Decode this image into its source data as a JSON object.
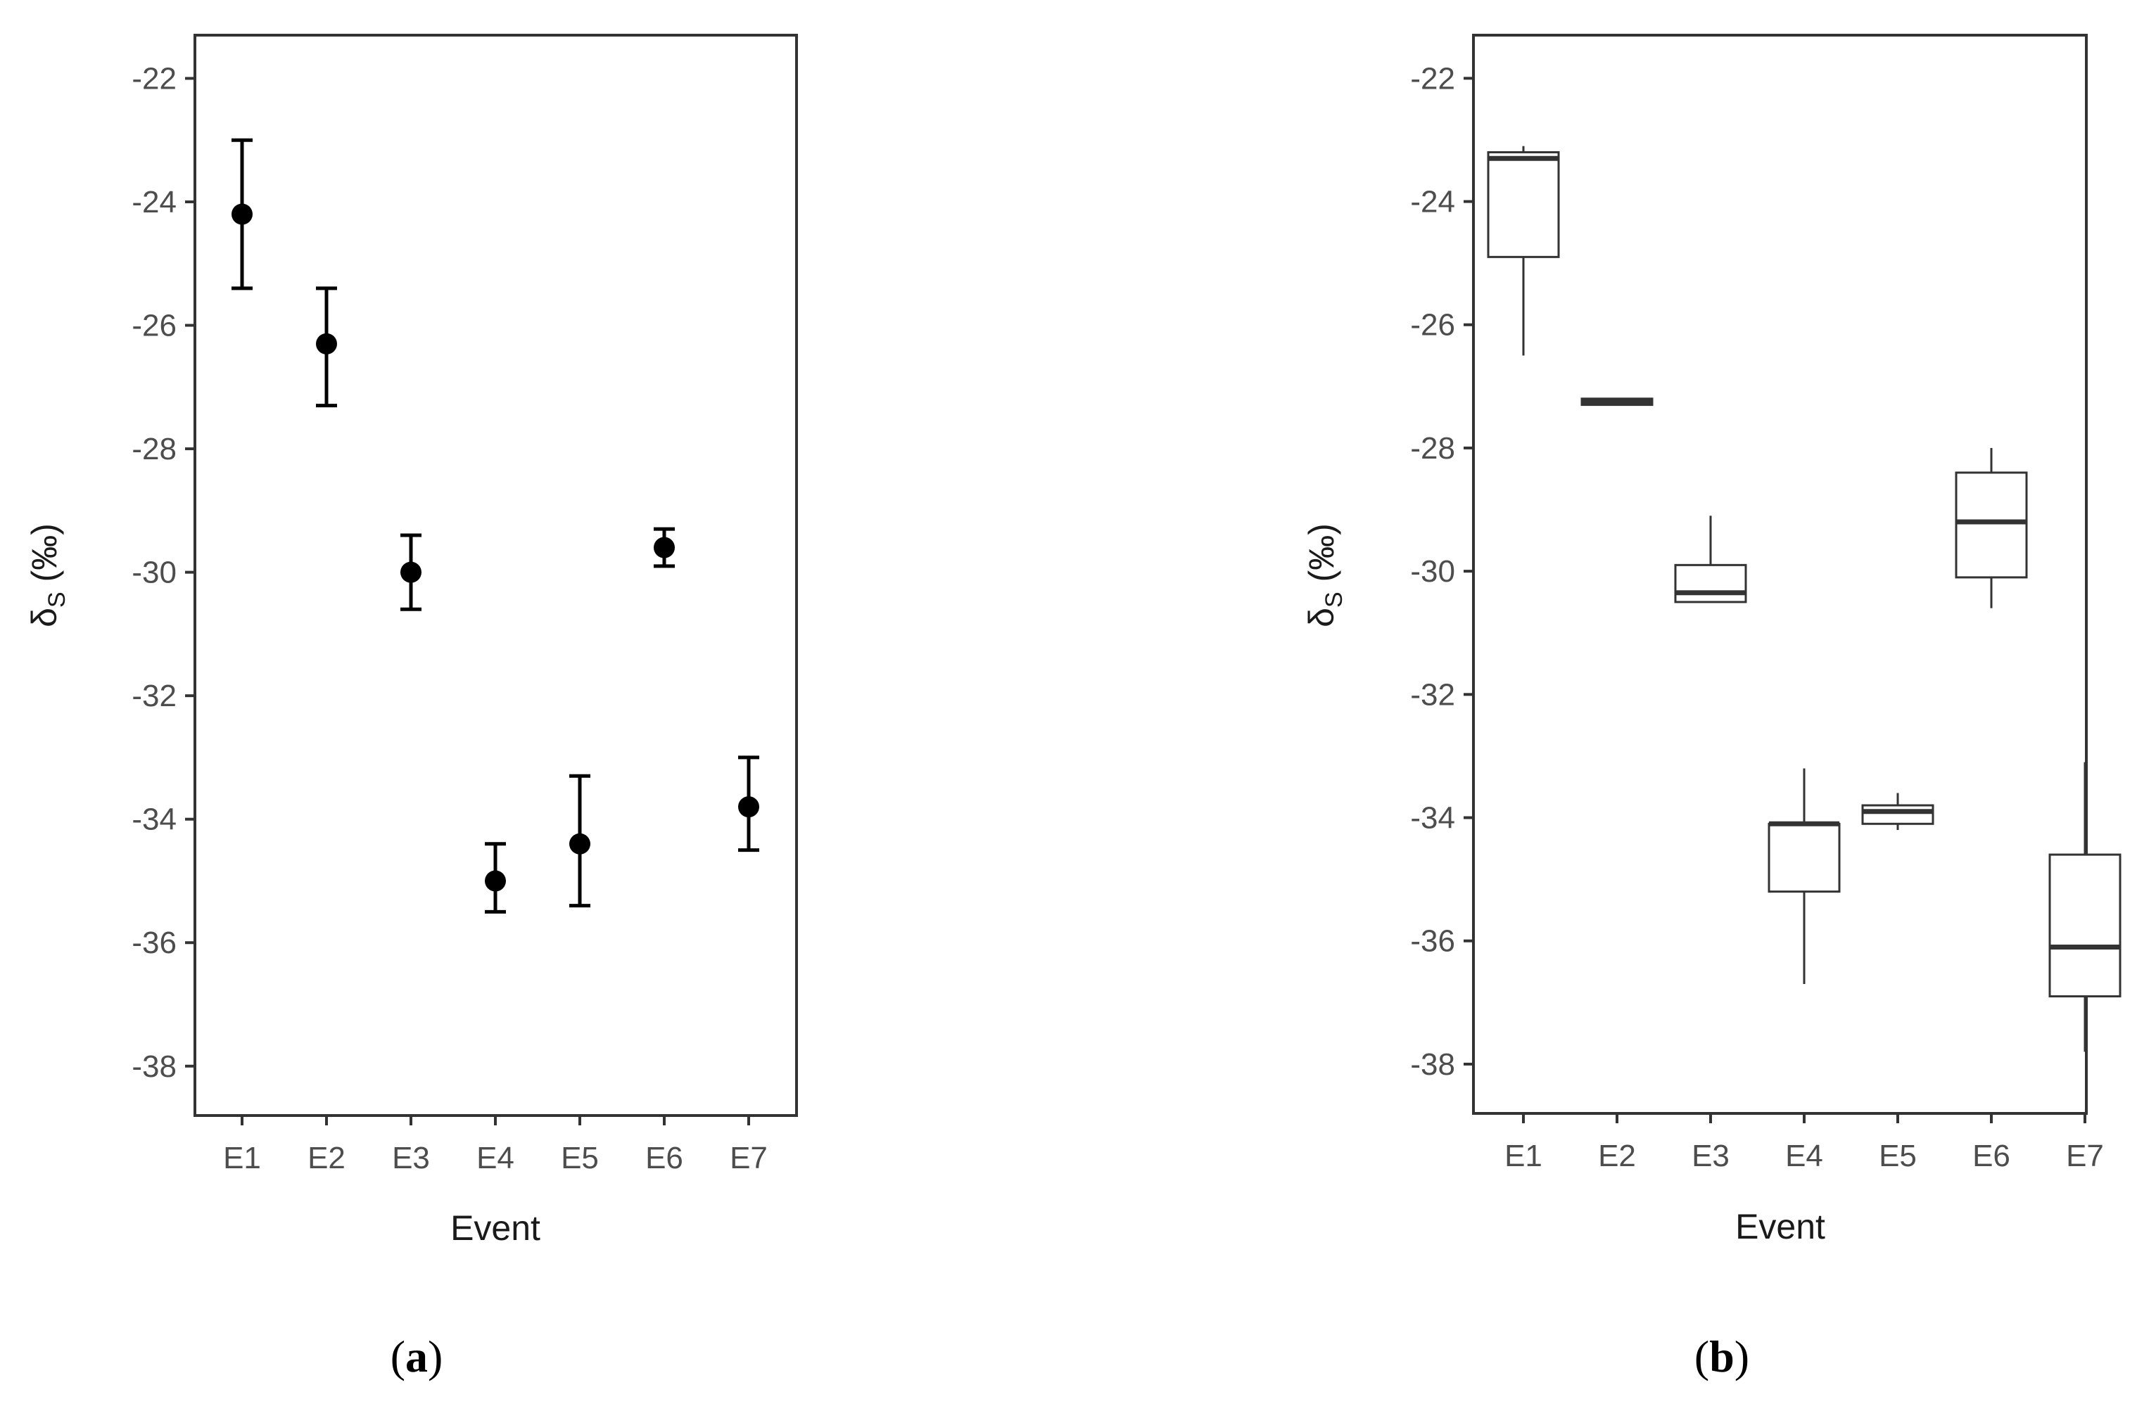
{
  "chart_data": [
    {
      "type": "scatter",
      "panel_label": "a",
      "xlabel": "Event",
      "ylabel_main": "δ",
      "ylabel_sub": "S",
      "ylabel_tail": " (‰)",
      "categories": [
        "E1",
        "E2",
        "E3",
        "E4",
        "E5",
        "E6",
        "E7"
      ],
      "yticks": [
        -22,
        -24,
        -26,
        -28,
        -30,
        -32,
        -34,
        -36,
        -38
      ],
      "ylim": [
        -38.8,
        -21.3
      ],
      "grid": false,
      "points": [
        {
          "x": "E1",
          "y": -24.2,
          "ymin": -25.4,
          "ymax": -23.0
        },
        {
          "x": "E2",
          "y": -26.3,
          "ymin": -27.3,
          "ymax": -25.4
        },
        {
          "x": "E3",
          "y": -30.0,
          "ymin": -30.6,
          "ymax": -29.4
        },
        {
          "x": "E4",
          "y": -35.0,
          "ymin": -35.5,
          "ymax": -34.4
        },
        {
          "x": "E5",
          "y": -34.4,
          "ymin": -35.4,
          "ymax": -33.3
        },
        {
          "x": "E6",
          "y": -29.6,
          "ymin": -29.9,
          "ymax": -29.3
        },
        {
          "x": "E7",
          "y": -33.8,
          "ymin": -34.5,
          "ymax": -33.0
        }
      ]
    },
    {
      "type": "box",
      "panel_label": "b",
      "xlabel": "Event",
      "ylabel_main": "δ",
      "ylabel_sub": "S",
      "ylabel_tail": " (‰)",
      "categories": [
        "E1",
        "E2",
        "E3",
        "E4",
        "E5",
        "E6",
        "E7"
      ],
      "yticks": [
        -22,
        -24,
        -26,
        -28,
        -30,
        -32,
        -34,
        -36,
        -38
      ],
      "ylim": [
        -38.8,
        -21.3
      ],
      "grid": false,
      "boxes": [
        {
          "x": "E1",
          "min": -26.5,
          "q1": -24.9,
          "median": -23.3,
          "q3": -23.2,
          "max": -23.1
        },
        {
          "x": "E2",
          "min": -27.3,
          "q1": -27.3,
          "median": -27.25,
          "q3": -27.2,
          "max": -27.2
        },
        {
          "x": "E3",
          "min": -30.5,
          "q1": -30.5,
          "median": -30.35,
          "q3": -29.9,
          "max": -29.1
        },
        {
          "x": "E4",
          "min": -36.7,
          "q1": -35.2,
          "median": -34.1,
          "q3": -34.1,
          "max": -33.2
        },
        {
          "x": "E5",
          "min": -34.2,
          "q1": -34.1,
          "median": -33.9,
          "q3": -33.8,
          "max": -33.6
        },
        {
          "x": "E6",
          "min": -30.6,
          "q1": -30.1,
          "median": -29.2,
          "q3": -28.4,
          "max": -28.0
        },
        {
          "x": "E7",
          "min": -37.8,
          "q1": -36.9,
          "median": -36.1,
          "q3": -34.6,
          "max": -33.1
        }
      ]
    }
  ]
}
